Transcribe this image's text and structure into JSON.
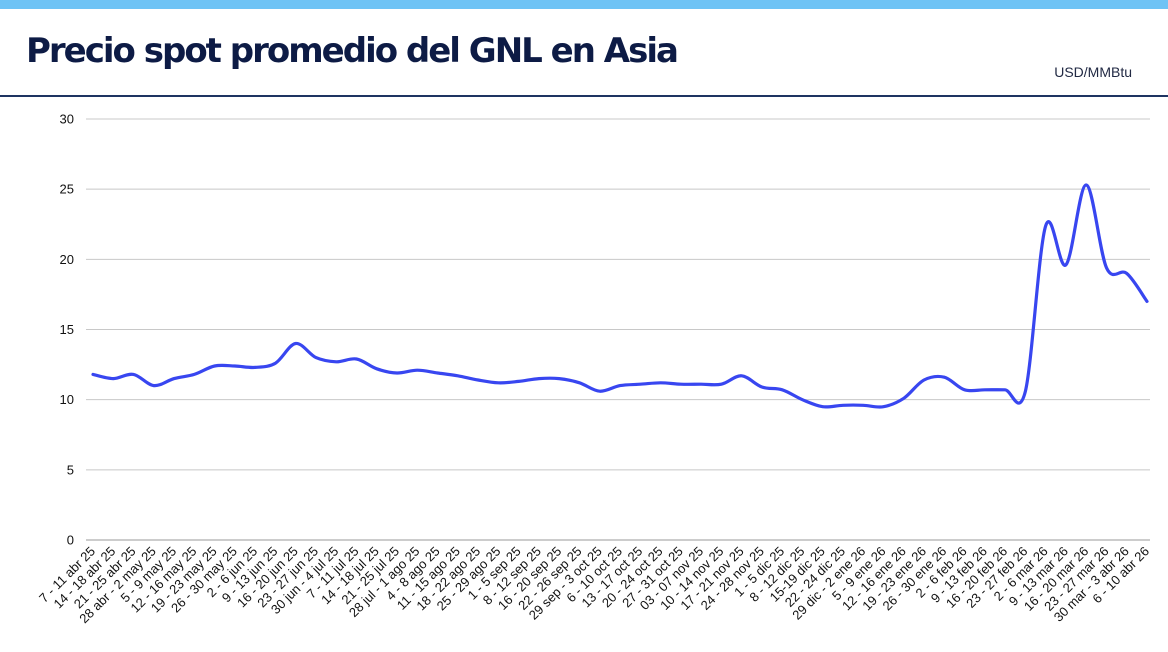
{
  "header": {
    "title": "Precio spot promedio del GNL en Asia",
    "unit": "USD/MMBtu"
  },
  "colors": {
    "stripe": "#6ec3f5",
    "title": "#0d1b45",
    "rule": "#1e3461",
    "series": "#3846f0",
    "grid": "#c8c8c8"
  },
  "chart_data": {
    "type": "line",
    "title": "Precio spot promedio del GNL en Asia",
    "xlabel": "",
    "ylabel": "USD/MMBtu",
    "ylim": [
      0,
      30
    ],
    "yticks": [
      0,
      5,
      10,
      15,
      20,
      25,
      30
    ],
    "grid": true,
    "legend": "none",
    "categories": [
      "7 - 11 abr 25",
      "14 - 18 abr 25",
      "21 - 25 abr 25",
      "28 abr - 2 may 25",
      "5 - 9 may 25",
      "12 - 16 may 25",
      "19 - 23 may 25",
      "26 - 30 may 25",
      "2 - 6 jun 25",
      "9 - 13 jun 25",
      "16 - 20 jun 25",
      "23 - 27 jun 25",
      "30 jun - 4 jul 25",
      "7 - 11 jul 25",
      "14 - 18 jul 25",
      "21 - 25 jul 25",
      "28 jul - 1 ago 25",
      "4 - 8 ago 25",
      "11 - 15 ago 25",
      "18 - 22 ago 25",
      "25 - 29 ago 25",
      "1 - 5 sep 25",
      "8 - 12 sep 25",
      "16 - 20 sep 25",
      "22 - 26 sep 25",
      "29 sep - 3 oct 25",
      "6 - 10 oct 25",
      "13 - 17 oct 25",
      "20 - 24 oct 25",
      "27 - 31 oct 25",
      "03 - 07 nov 25",
      "10 - 14 nov 25",
      "17 - 21 nov 25",
      "24 - 28 nov 25",
      "1 - 5 dic 25",
      "8 - 12 dic 25",
      "15-19 dic 25",
      "22 - 24 dic 25",
      "29 dic - 2 ene 26",
      "5 - 9 ene 26",
      "12 - 16 ene 26",
      "19 - 23 ene 26",
      "26 - 30 ene 26",
      "2 - 6 feb 26",
      "9 - 13 feb 26",
      "16 - 20 feb 26",
      "23 - 27 feb 26",
      "2 - 6 mar 26",
      "9 - 13 mar 26",
      "16 - 20 mar 26",
      "23 - 27 mar 26",
      "30 mar - 3 abr 26",
      "6 - 10 abr 26"
    ],
    "series": [
      {
        "values": [
          11.8,
          11.5,
          11.8,
          11.0,
          11.5,
          11.8,
          12.4,
          12.4,
          12.3,
          12.6,
          14.0,
          13.0,
          12.7,
          12.9,
          12.2,
          11.9,
          12.1,
          11.9,
          11.7,
          11.4,
          11.2,
          11.3,
          11.5,
          11.5,
          11.2,
          10.6,
          11.0,
          11.1,
          11.2,
          11.1,
          11.1,
          11.1,
          11.7,
          10.9,
          10.7,
          10.0,
          9.5,
          9.6,
          9.6,
          9.5,
          10.1,
          11.4,
          11.6,
          10.7,
          10.7,
          10.7,
          10.6,
          22.4,
          19.6,
          25.3,
          19.4,
          19.0,
          17.0
        ]
      }
    ]
  }
}
